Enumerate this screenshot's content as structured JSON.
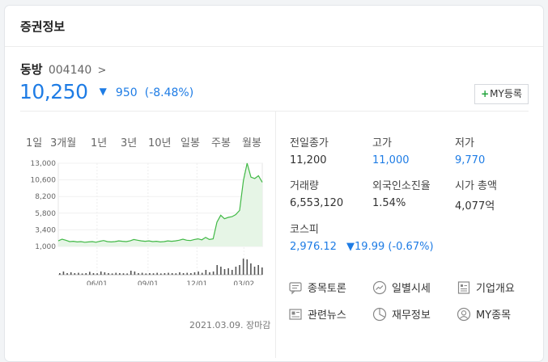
{
  "section_title": "증권정보",
  "stock": {
    "name": "동방",
    "code": "004140",
    "chevron": ">",
    "price": "10,250",
    "change_arrow": "▼",
    "change": "950",
    "change_pct": "(-8.48%)"
  },
  "my_button": {
    "plus": "+",
    "label": "MY등록"
  },
  "periods": [
    "1일",
    "3개월",
    "1년",
    "3년",
    "10년",
    "일봉",
    "주봉",
    "월봉"
  ],
  "active_period": "1년",
  "chart_data": {
    "type": "line",
    "x_ticks": [
      "06/01",
      "09/01",
      "12/01",
      "03/02"
    ],
    "y_ticks": [
      "13,000",
      "10,600",
      "8,200",
      "5,800",
      "3,400",
      "1,000"
    ],
    "ylim": [
      1000,
      13000
    ],
    "series": [
      {
        "values": [
          1800,
          2050,
          1900,
          1700,
          1750,
          1650,
          1700,
          1600,
          1650,
          1700,
          1600,
          1750,
          1850,
          1700,
          1650,
          1700,
          1800,
          1750,
          1700,
          1800,
          2000,
          1900,
          1800,
          1750,
          1800,
          1700,
          1750,
          1650,
          1700,
          1800,
          1750,
          1800,
          1900,
          2050,
          1900,
          1850,
          2000,
          2100,
          1950,
          2300,
          2000,
          2100,
          4500,
          5500,
          5000,
          5200,
          5300,
          5600,
          6200,
          10500,
          13000,
          11000,
          10800,
          11200,
          10250
        ]
      }
    ],
    "volume": [
      0.1,
      0.2,
      0.1,
      0.15,
      0.1,
      0.12,
      0.08,
      0.1,
      0.18,
      0.1,
      0.09,
      0.2,
      0.15,
      0.1,
      0.08,
      0.12,
      0.1,
      0.09,
      0.08,
      0.25,
      0.2,
      0.1,
      0.12,
      0.08,
      0.1,
      0.09,
      0.12,
      0.08,
      0.1,
      0.12,
      0.1,
      0.09,
      0.15,
      0.1,
      0.12,
      0.1,
      0.15,
      0.2,
      0.12,
      0.3,
      0.15,
      0.2,
      0.6,
      0.5,
      0.35,
      0.4,
      0.3,
      0.5,
      0.6,
      1.0,
      0.95,
      0.7,
      0.5,
      0.6,
      0.45
    ],
    "line_color": "#41b946",
    "fill_color": "#e6f5e6",
    "volume_color": "#555555"
  },
  "chart_date": "2021.03.09. 장마감",
  "stats": [
    {
      "label": "전일종가",
      "value": "11,200",
      "color": "normal"
    },
    {
      "label": "고가",
      "value": "11,000",
      "color": "blue"
    },
    {
      "label": "저가",
      "value": "9,770",
      "color": "blue"
    },
    {
      "label": "거래량",
      "value": "6,553,120",
      "color": "normal"
    },
    {
      "label": "외국인소진율",
      "value": "1.54%",
      "color": "normal"
    },
    {
      "label": "시가 총액",
      "value": "4,077억",
      "color": "normal"
    },
    {
      "label": "코스피",
      "value": "2,976.12",
      "color": "blue",
      "change": "▼19.99 (-0.67%)"
    }
  ],
  "links": [
    {
      "label": "종목토론",
      "icon": "chat-icon"
    },
    {
      "label": "일별시세",
      "icon": "trend-icon"
    },
    {
      "label": "기업개요",
      "icon": "document-icon"
    },
    {
      "label": "관련뉴스",
      "icon": "news-icon"
    },
    {
      "label": "재무정보",
      "icon": "pie-chart-icon"
    },
    {
      "label": "MY종목",
      "icon": "user-icon"
    }
  ],
  "colors": {
    "blue": "#1e7ce5",
    "green": "#21a33b"
  }
}
